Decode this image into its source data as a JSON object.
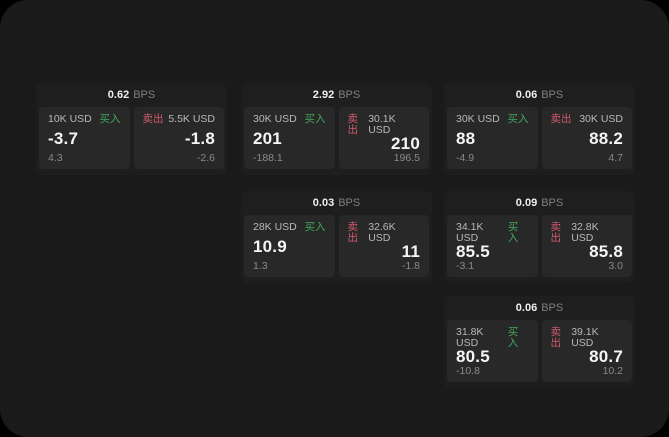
{
  "labels": {
    "bps_unit": "BPS",
    "buy": "买入",
    "sell": "卖出"
  },
  "colors": {
    "page_bg": "#1a1a1a",
    "card_bg": "#1e1e1e",
    "panel_bg": "#282828",
    "buy_green": "#42a85c",
    "sell_red": "#d05a6e"
  },
  "cards": [
    {
      "bps": "0.62",
      "buy": {
        "amount": "10K USD",
        "value": "-3.7",
        "delta": "4.3"
      },
      "sell": {
        "amount": "5.5K USD",
        "value": "-1.8",
        "delta": "-2.6"
      }
    },
    {
      "bps": "2.92",
      "buy": {
        "amount": "30K USD",
        "value": "201",
        "delta": "-188.1"
      },
      "sell": {
        "amount": "30.1K USD",
        "value": "210",
        "delta": "196.5"
      }
    },
    {
      "bps": "0.06",
      "buy": {
        "amount": "30K USD",
        "value": "88",
        "delta": "-4.9"
      },
      "sell": {
        "amount": "30K USD",
        "value": "88.2",
        "delta": "4.7"
      }
    },
    {
      "bps": "0.03",
      "buy": {
        "amount": "28K USD",
        "value": "10.9",
        "delta": "1.3"
      },
      "sell": {
        "amount": "32.6K USD",
        "value": "11",
        "delta": "-1.8"
      }
    },
    {
      "bps": "0.09",
      "buy": {
        "amount": "34.1K USD",
        "value": "85.5",
        "delta": "-3.1"
      },
      "sell": {
        "amount": "32.8K USD",
        "value": "85.8",
        "delta": "3.0"
      }
    },
    {
      "bps": "0.06",
      "buy": {
        "amount": "31.8K USD",
        "value": "80.5",
        "delta": "-10.8"
      },
      "sell": {
        "amount": "39.1K USD",
        "value": "80.7",
        "delta": "10.2"
      }
    }
  ]
}
